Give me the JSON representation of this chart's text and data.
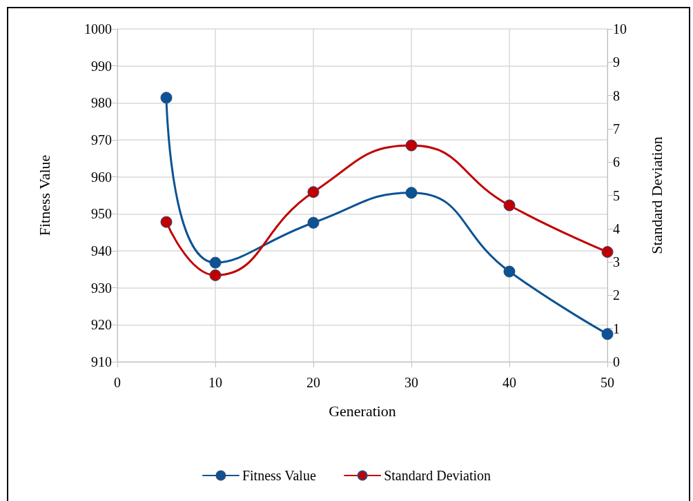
{
  "chart_data": {
    "type": "line",
    "xlabel": "Generation",
    "ylabel": "Fitness Value",
    "y2label": "Standard Deviation",
    "x": [
      5,
      10,
      20,
      30,
      40,
      50
    ],
    "series": [
      {
        "name": "Fitness Value",
        "color": "#0b5394",
        "values": [
          981.4,
          936.8,
          947.6,
          955.7,
          934.4,
          917.5
        ]
      },
      {
        "name": "Standard Deviation",
        "color": "#c00000",
        "axis": "y2",
        "values": [
          4.2,
          2.6,
          5.1,
          6.5,
          4.7,
          3.3
        ]
      }
    ],
    "xlim": [
      0,
      50
    ],
    "xticks": [
      0,
      10,
      20,
      30,
      40,
      50
    ],
    "ylim": [
      910,
      1000
    ],
    "yticks": [
      910,
      920,
      930,
      940,
      950,
      960,
      970,
      980,
      990,
      1000
    ],
    "y2lim": [
      0,
      10
    ],
    "y2ticks": [
      0,
      1,
      2,
      3,
      4,
      5,
      6,
      7,
      8,
      9,
      10
    ],
    "grid": true,
    "legend": "bottom",
    "marker": "circle",
    "line_style": "solid"
  }
}
